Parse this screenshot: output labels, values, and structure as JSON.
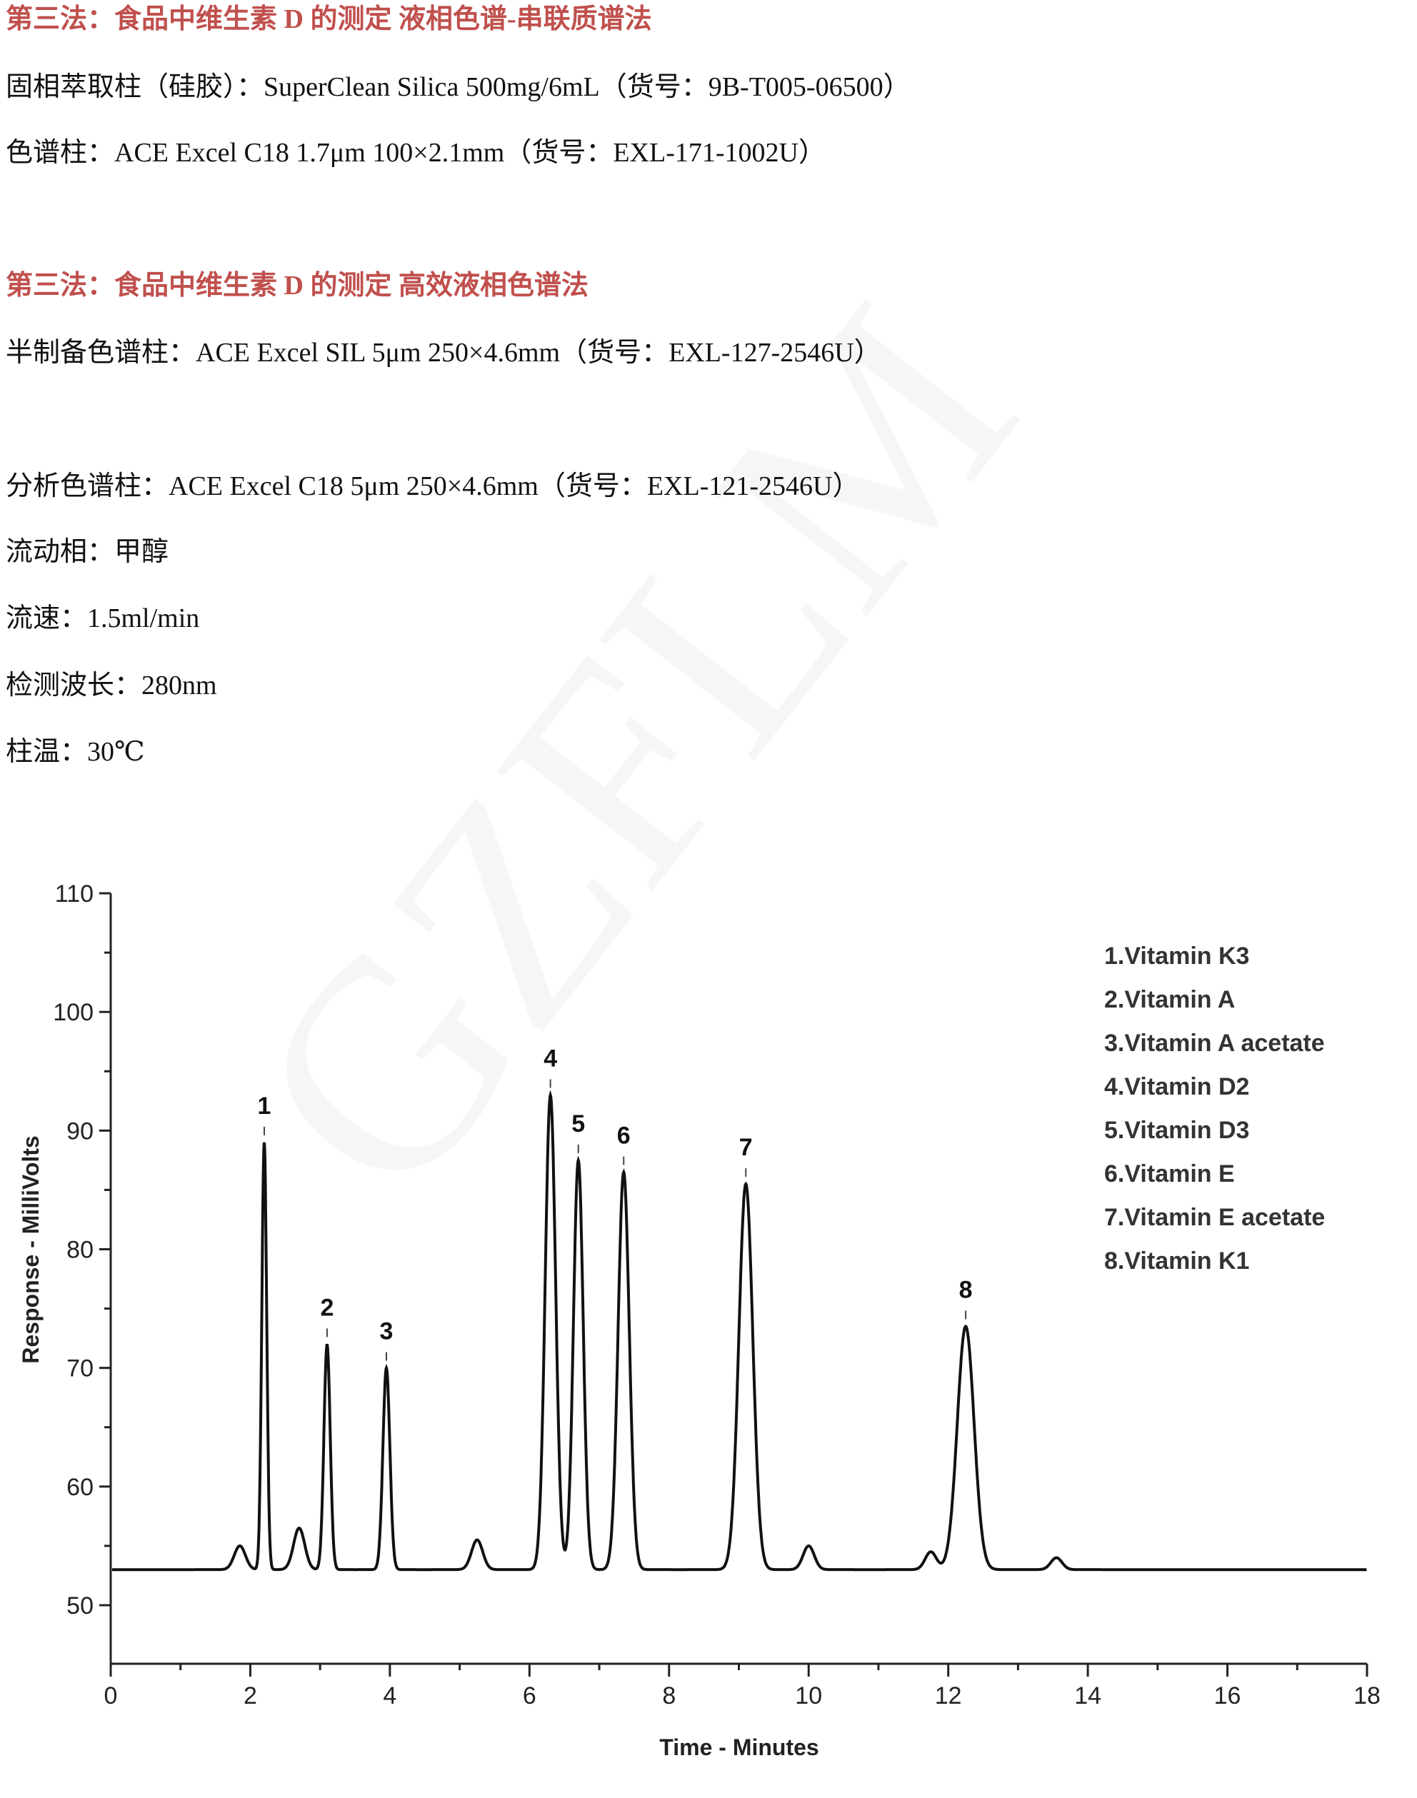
{
  "sections": [
    {
      "title": "第三法：食品中维生素 D 的测定  液相色谱-串联质谱法",
      "lines": [
        "固相萃取柱（硅胶）：SuperClean Silica 500mg/6mL（货号：9B-T005-06500）",
        "色谱柱：ACE Excel C18 1.7μm 100×2.1mm（货号：EXL-171-1002U）"
      ]
    },
    {
      "title": "第三法：食品中维生素 D 的测定  高效液相色谱法",
      "lines": [
        "半制备色谱柱：ACE Excel SIL 5μm 250×4.6mm（货号：EXL-127-2546U）",
        "分析色谱柱：ACE Excel C18 5μm 250×4.6mm（货号：EXL-121-2546U）",
        "流动相：甲醇",
        "流速：1.5ml/min",
        "检测波长：280nm",
        "柱温：30℃"
      ]
    }
  ],
  "title_color": "#c0504d",
  "watermark": "GZFLM",
  "chart_data": {
    "type": "line",
    "xlabel": "Time - Minutes",
    "ylabel": "Response - MilliVolts",
    "xlim": [
      0,
      18
    ],
    "ylim": [
      50,
      110
    ],
    "xticks": [
      "0",
      "2",
      "4",
      "6",
      "8",
      "10",
      "12",
      "14",
      "16",
      "18"
    ],
    "yticks": [
      "50",
      "60",
      "70",
      "80",
      "90",
      "100",
      "110"
    ],
    "baseline": 53,
    "grid": false,
    "legend_placement": "top-right",
    "legend": [
      "1.Vitamin K3",
      "2.Vitamin A",
      "3.Vitamin A acetate",
      "4.Vitamin D2",
      "5.Vitamin D3",
      "6.Vitamin E",
      "7.Vitamin E acetate",
      "8.Vitamin K1"
    ],
    "peaks": [
      {
        "label": "1",
        "time": 2.2,
        "height": 89
      },
      {
        "label": "2",
        "time": 3.1,
        "height": 72
      },
      {
        "label": "3",
        "time": 3.95,
        "height": 70
      },
      {
        "label": "4",
        "time": 6.3,
        "height": 93
      },
      {
        "label": "5",
        "time": 6.7,
        "height": 87.5
      },
      {
        "label": "6",
        "time": 7.35,
        "height": 86.5
      },
      {
        "label": "7",
        "time": 9.1,
        "height": 85.5
      },
      {
        "label": "8",
        "time": 12.25,
        "height": 73.5
      }
    ],
    "minor_peaks": [
      {
        "time": 1.85,
        "height": 55
      },
      {
        "time": 2.7,
        "height": 56.5
      },
      {
        "time": 5.25,
        "height": 55.5
      },
      {
        "time": 10.0,
        "height": 55
      },
      {
        "time": 11.75,
        "height": 54.5
      },
      {
        "time": 13.55,
        "height": 54
      }
    ]
  }
}
